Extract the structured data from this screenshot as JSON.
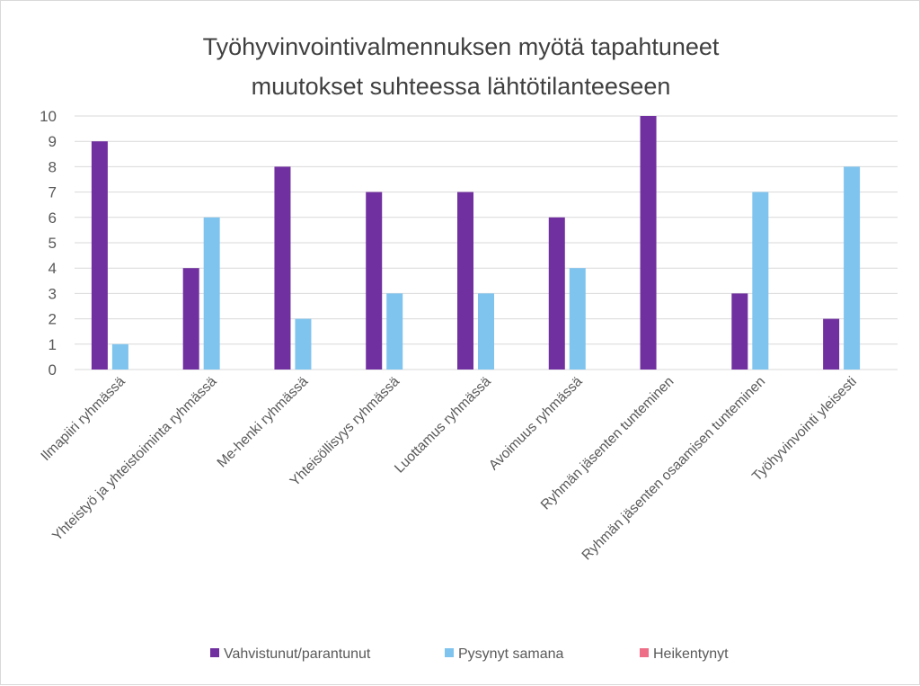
{
  "chart_data": {
    "type": "bar",
    "title_lines": [
      "Työhyvinvointivalmennuksen myötä tapahtuneet",
      "muutokset suhteessa lähtötilanteeseen"
    ],
    "xlabel": "",
    "ylabel": "",
    "ylim": [
      0,
      10
    ],
    "yticks": [
      "0",
      "1",
      "2",
      "3",
      "4",
      "5",
      "6",
      "7",
      "8",
      "9",
      "10"
    ],
    "grid": true,
    "legend_position": "bottom",
    "categories": [
      "Ilmapiiri ryhmässä",
      "Yhteistyö ja yhteistoiminta ryhmässä",
      "Me-henki ryhmässä",
      "Yhteisöllisyys ryhmässä",
      "Luottamus ryhmässä",
      "Avoimuus ryhmässä",
      "Ryhmän jäsenten tunteminen",
      "Ryhmän jäsenten osaamisen tunteminen",
      "Työhyvinvointi yleisesti"
    ],
    "series": [
      {
        "name": "Vahvistunut/parantunut",
        "color": "#7030a0",
        "values": [
          9,
          4,
          8,
          7,
          7,
          6,
          10,
          3,
          2
        ]
      },
      {
        "name": "Pysynyt samana",
        "color": "#7fc4ee",
        "values": [
          1,
          6,
          2,
          3,
          3,
          4,
          0,
          7,
          8
        ]
      },
      {
        "name": "Heikentynyt",
        "color": "#ee6e87",
        "values": [
          0,
          0,
          0,
          0,
          0,
          0,
          0,
          0,
          0
        ]
      }
    ]
  }
}
